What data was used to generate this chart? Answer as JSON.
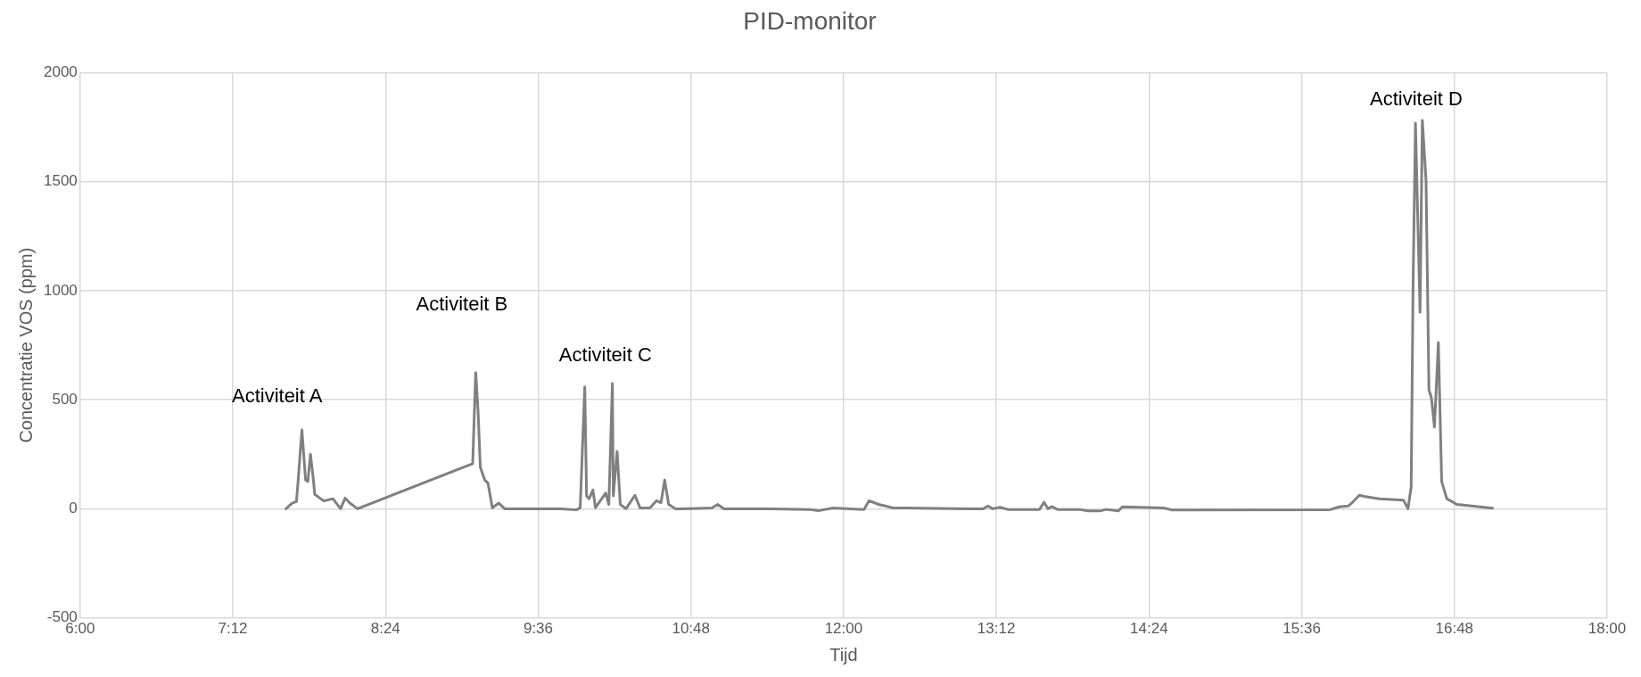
{
  "chart_data": {
    "type": "line",
    "title": "PID-monitor",
    "xlabel": "Tijd",
    "ylabel": "Concentratie VOS (ppm)",
    "xlim": [
      6,
      18
    ],
    "xticks": [
      {
        "value": 6,
        "label": "6:00"
      },
      {
        "value": 7.2,
        "label": "7:12"
      },
      {
        "value": 8.4,
        "label": "8:24"
      },
      {
        "value": 9.6,
        "label": "9:36"
      },
      {
        "value": 10.8,
        "label": "10:48"
      },
      {
        "value": 12,
        "label": "12:00"
      },
      {
        "value": 13.2,
        "label": "13:12"
      },
      {
        "value": 14.4,
        "label": "14:24"
      },
      {
        "value": 15.6,
        "label": "15:36"
      },
      {
        "value": 16.8,
        "label": "16:48"
      },
      {
        "value": 18,
        "label": "18:00"
      }
    ],
    "ylim": [
      -500,
      2000
    ],
    "yticks": [
      -500,
      0,
      500,
      1000,
      1500,
      2000
    ],
    "grid": true,
    "legend": false,
    "marker": "none",
    "line_style": "solid",
    "series": [
      {
        "color": "#808080",
        "x": [
          7.618,
          7.666,
          7.7,
          7.712,
          7.743,
          7.772,
          7.79,
          7.81,
          7.83,
          7.844,
          7.915,
          7.987,
          8.047,
          8.083,
          8.12,
          8.18,
          9.085,
          9.109,
          9.128,
          9.145,
          9.18,
          9.205,
          9.24,
          9.29,
          9.337,
          9.78,
          9.9,
          9.93,
          9.966,
          9.98,
          10.0,
          10.03,
          10.05,
          10.13,
          10.155,
          10.183,
          10.19,
          10.22,
          10.245,
          10.29,
          10.36,
          10.4,
          10.48,
          10.53,
          10.565,
          10.594,
          10.625,
          10.68,
          10.727,
          10.965,
          11.01,
          11.06,
          11.44,
          11.73,
          11.8,
          11.918,
          12.16,
          12.2,
          12.275,
          12.335,
          12.39,
          12.99,
          13.098,
          13.134,
          13.17,
          13.23,
          13.29,
          13.54,
          13.575,
          13.606,
          13.634,
          13.68,
          13.85,
          13.92,
          14.015,
          14.063,
          14.158,
          14.19,
          14.515,
          14.585,
          15.823,
          15.895,
          15.967,
          15.993,
          16.053,
          16.09,
          16.21,
          16.4,
          16.435,
          16.46,
          16.475,
          16.494,
          16.53,
          16.548,
          16.577,
          16.6,
          16.62,
          16.643,
          16.674,
          16.7,
          16.74,
          16.82,
          17.1
        ],
        "values": [
          0,
          26,
          33,
          118,
          362,
          132,
          125,
          250,
          151,
          66,
          36,
          46,
          0,
          49,
          26,
          0,
          207,
          625,
          441,
          191,
          132,
          118,
          4,
          26,
          0,
          0,
          -5,
          5,
          559,
          59,
          46,
          86,
          5,
          72,
          20,
          575,
          59,
          263,
          20,
          0,
          62,
          4,
          5,
          37,
          28,
          132,
          20,
          0,
          0,
          4,
          20,
          0,
          0,
          -3,
          -9,
          4,
          -3,
          37,
          20,
          12,
          4,
          0,
          0,
          13,
          0,
          7,
          -3,
          -3,
          30,
          0,
          10,
          -3,
          -3,
          -10,
          -10,
          -3,
          -10,
          9,
          4,
          -6,
          -4,
          9,
          13,
          26,
          62,
          57,
          46,
          39,
          0,
          99,
          1020,
          1769,
          901,
          1782,
          1506,
          546,
          507,
          375,
          763,
          125,
          46,
          20,
          3
        ]
      }
    ],
    "annotations": [
      "Activiteit A",
      "Activiteit B",
      "Activiteit C",
      "Activiteit D"
    ]
  }
}
